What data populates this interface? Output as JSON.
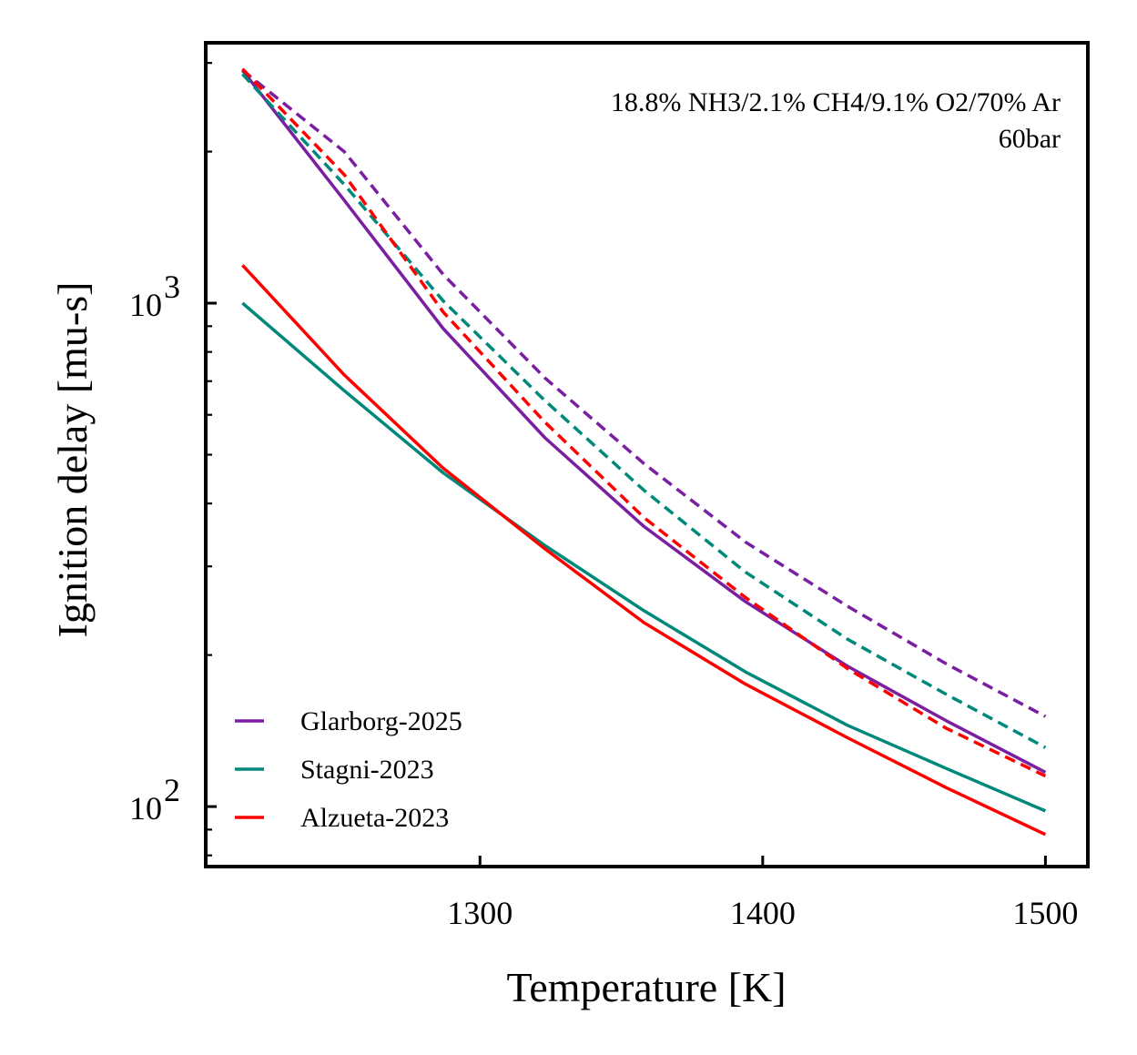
{
  "chart_data": {
    "type": "line",
    "xlabel": "Temperature [K]",
    "ylabel": "Ignition delay [mu-s]",
    "xlim": [
      1203,
      1515
    ],
    "ylim": [
      76,
      3290
    ],
    "yscale": "log",
    "xticks": [
      1300,
      1400,
      1500
    ],
    "xtick_labels": [
      "1300",
      "1400",
      "1500"
    ],
    "yticks_major": [
      100,
      1000
    ],
    "ytick_label_bases": [
      "10",
      "10"
    ],
    "ytick_label_exponents": [
      "2",
      "3"
    ],
    "annotations": [
      "18.8% NH3/2.1% CH4/9.1% O2/70% Ar",
      "60bar"
    ],
    "grid": false,
    "legend_position": "lower-left",
    "x": [
      1216,
      1252,
      1287,
      1323,
      1358,
      1394,
      1430,
      1465,
      1500
    ],
    "series": [
      {
        "name": "Glarborg-2025",
        "color": "#7B1FA2",
        "dash": "solid",
        "values": [
          2900,
          1600,
          890,
          540,
          360,
          255,
          190,
          148,
          117
        ]
      },
      {
        "name": "Stagni-2023",
        "color": "#00897B",
        "dash": "solid",
        "values": [
          1000,
          670,
          460,
          330,
          245,
          185,
          145,
          119,
          98
        ]
      },
      {
        "name": "Alzueta-2023",
        "color": "#FF0000",
        "dash": "solid",
        "values": [
          1190,
          720,
          470,
          325,
          232,
          175,
          137,
          109,
          88
        ]
      },
      {
        "name": "",
        "color": "#7B1FA2",
        "dash": "dashed",
        "values": [
          2900,
          2000,
          1140,
          710,
          480,
          335,
          250,
          192,
          151
        ]
      },
      {
        "name": "",
        "color": "#00897B",
        "dash": "dashed",
        "values": [
          2850,
          1720,
          1010,
          640,
          425,
          292,
          215,
          167,
          131
        ]
      },
      {
        "name": "",
        "color": "#FF0000",
        "dash": "dashed",
        "values": [
          2920,
          1800,
          960,
          580,
          375,
          260,
          188,
          143,
          115
        ]
      }
    ]
  }
}
